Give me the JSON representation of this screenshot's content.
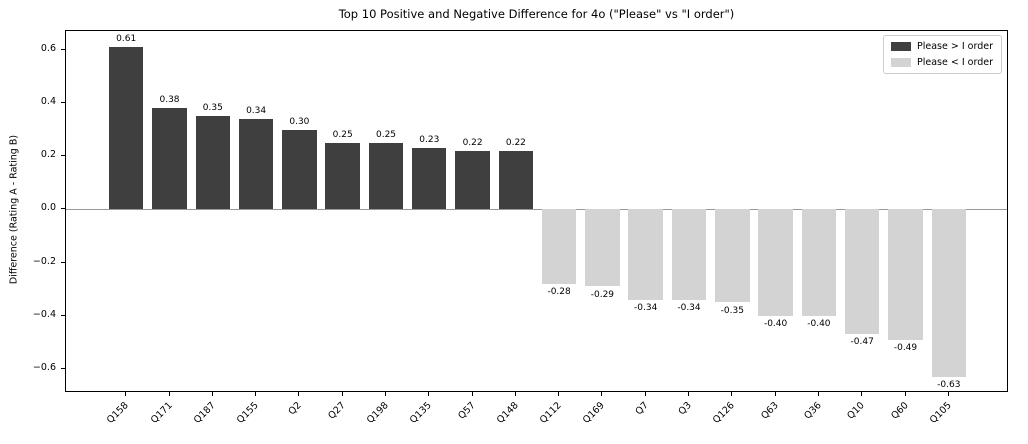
{
  "chart_data": {
    "type": "bar",
    "title": "Top 10 Positive and Negative Difference for 4o (\"Please\" vs \"I order\")",
    "xlabel": "",
    "ylabel": "Difference (Rating A - Rating B)",
    "categories": [
      "Q158",
      "Q171",
      "Q187",
      "Q155",
      "Q2",
      "Q27",
      "Q198",
      "Q135",
      "Q57",
      "Q148",
      "Q112",
      "Q169",
      "Q7",
      "Q3",
      "Q126",
      "Q63",
      "Q36",
      "Q10",
      "Q60",
      "Q105"
    ],
    "values": [
      0.61,
      0.38,
      0.35,
      0.34,
      0.3,
      0.25,
      0.25,
      0.23,
      0.22,
      0.22,
      -0.28,
      -0.29,
      -0.34,
      -0.34,
      -0.35,
      -0.4,
      -0.4,
      -0.47,
      -0.49,
      -0.63
    ],
    "bar_labels": [
      "0.61",
      "0.38",
      "0.35",
      "0.34",
      "0.30",
      "0.25",
      "0.25",
      "0.23",
      "0.22",
      "0.22",
      "-0.28",
      "-0.29",
      "-0.34",
      "-0.34",
      "-0.35",
      "-0.40",
      "-0.40",
      "-0.47",
      "-0.49",
      "-0.63"
    ],
    "ylim": [
      -0.69,
      0.67
    ],
    "yticks": [
      0.6,
      0.4,
      0.2,
      0.0,
      -0.2,
      -0.4,
      -0.6
    ],
    "ytick_labels": [
      "0.6",
      "0.4",
      "0.2",
      "0.0",
      "−0.2",
      "−0.4",
      "−0.6"
    ],
    "bar_width_fraction": 0.8,
    "x_edge_pad": 1.39,
    "grid": false,
    "legend_position": "upper right",
    "legend": [
      {
        "label": "Please > I order",
        "color": "#3f3f3f"
      },
      {
        "label": "Please < I order",
        "color": "#d3d3d3"
      }
    ],
    "colors": {
      "positive_bar": "#3f3f3f",
      "negative_bar": "#d3d3d3",
      "zero_line": "#999999",
      "spine": "#000000",
      "text": "#000000",
      "legend_border": "#cccccc"
    }
  }
}
